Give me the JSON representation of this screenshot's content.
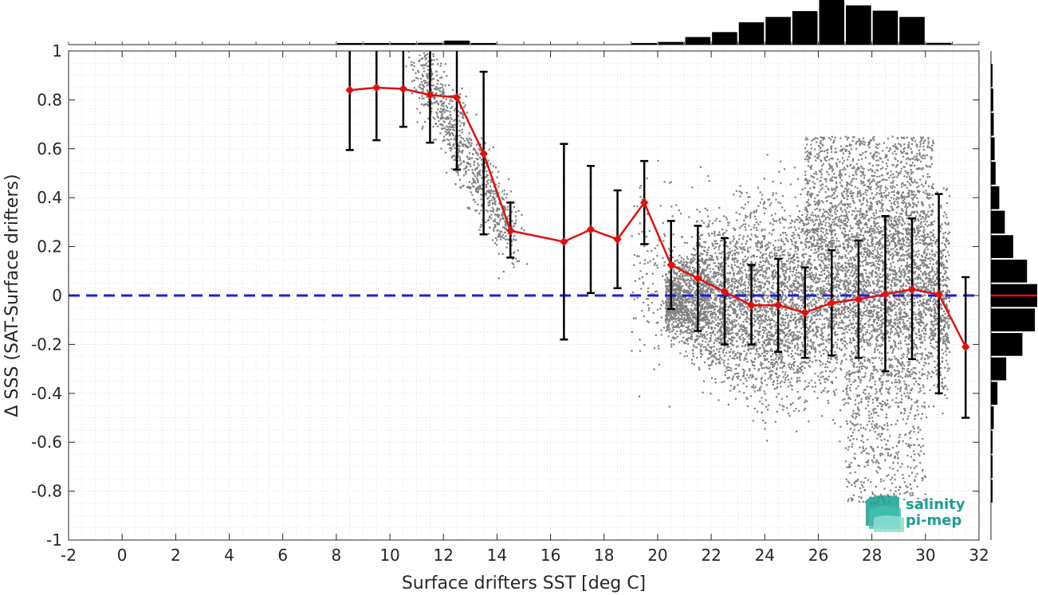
{
  "chart_data": {
    "type": "scatter",
    "xlabel": "Surface drifters SST [deg C]",
    "ylabel": "Δ SSS (SAT-Surface drifters)",
    "xlim": [
      -2,
      32
    ],
    "ylim": [
      -1,
      1
    ],
    "xticks": [
      "-2",
      "0",
      "2",
      "4",
      "6",
      "8",
      "10",
      "12",
      "14",
      "16",
      "18",
      "20",
      "22",
      "24",
      "26",
      "28",
      "30",
      "32"
    ],
    "yticks": [
      "-1",
      "-0.8",
      "-0.6",
      "-0.4",
      "-0.2",
      "0",
      "0.2",
      "0.4",
      "0.6",
      "0.8",
      "1"
    ],
    "grid": true,
    "zero_line": {
      "y": 0,
      "style": "dashed",
      "color": "#1f1fd6"
    },
    "series": [
      {
        "type": "line-errorbar",
        "color": "#e01010",
        "x": [
          8.5,
          9.5,
          10.5,
          11.5,
          12.5,
          13.5,
          14.5,
          16.5,
          17.5,
          18.5,
          19.5,
          20.5,
          21.5,
          22.5,
          23.5,
          24.5,
          25.5,
          26.5,
          27.5,
          28.5,
          29.5,
          30.5,
          31.5
        ],
        "y": [
          0.84,
          0.85,
          0.845,
          0.82,
          0.81,
          0.58,
          0.265,
          0.22,
          0.27,
          0.23,
          0.38,
          0.125,
          0.07,
          0.015,
          -0.04,
          -0.04,
          -0.07,
          -0.03,
          -0.015,
          0.005,
          0.025,
          0.005,
          -0.21
        ],
        "err_low": [
          0.595,
          0.635,
          0.69,
          0.625,
          0.515,
          0.25,
          0.155,
          -0.18,
          0.01,
          0.03,
          0.21,
          -0.055,
          -0.145,
          -0.2,
          -0.2,
          -0.23,
          -0.255,
          -0.245,
          -0.255,
          -0.31,
          -0.26,
          -0.4,
          -0.5
        ],
        "err_high": [
          1.0,
          1.0,
          1.0,
          1.0,
          1.0,
          0.915,
          0.38,
          0.62,
          0.53,
          0.43,
          0.55,
          0.305,
          0.285,
          0.235,
          0.125,
          0.15,
          0.115,
          0.185,
          0.225,
          0.325,
          0.315,
          0.415,
          0.075
        ]
      },
      {
        "type": "scatter-cloud",
        "color": "#808080",
        "clusters": [
          {
            "x": [
              11,
              14.5
            ],
            "y_center": [
              0.95,
              0.3
            ],
            "spread": 0.08
          },
          {
            "x": [
              20,
              31
            ],
            "y_center": 0.0,
            "spread": 0.2
          },
          {
            "x": [
              26,
              30
            ],
            "y_center": 0.3,
            "spread": 0.15
          }
        ]
      }
    ],
    "top_histogram": {
      "bins": [
        8.5,
        9.5,
        10.5,
        11.5,
        12.5,
        13.5,
        14.5,
        15.5,
        16.5,
        17.5,
        18.5,
        19.5,
        20.5,
        21.5,
        22.5,
        23.5,
        24.5,
        25.5,
        26.5,
        27.5,
        28.5,
        29.5,
        30.5
      ],
      "counts": [
        0.02,
        0.01,
        0.01,
        0.04,
        0.09,
        0.03,
        0,
        0,
        0,
        0,
        0,
        0.02,
        0.06,
        0.17,
        0.28,
        0.5,
        0.62,
        0.75,
        1.0,
        0.88,
        0.76,
        0.62,
        0.04
      ]
    },
    "right_histogram": {
      "bins": [
        0.9,
        0.8,
        0.7,
        0.6,
        0.5,
        0.4,
        0.3,
        0.2,
        0.1,
        0.0,
        -0.1,
        -0.2,
        -0.3,
        -0.4,
        -0.5,
        -0.6,
        -0.7,
        -0.8
      ],
      "counts": [
        0.03,
        0.05,
        0.06,
        0.08,
        0.1,
        0.18,
        0.3,
        0.48,
        0.78,
        1.0,
        0.95,
        0.68,
        0.33,
        0.14,
        0.06,
        0.03,
        0.02,
        0.01
      ],
      "mean_marker_color": "#e01010"
    },
    "logo": {
      "line1": "salinity",
      "line2": "pi-mep"
    }
  }
}
